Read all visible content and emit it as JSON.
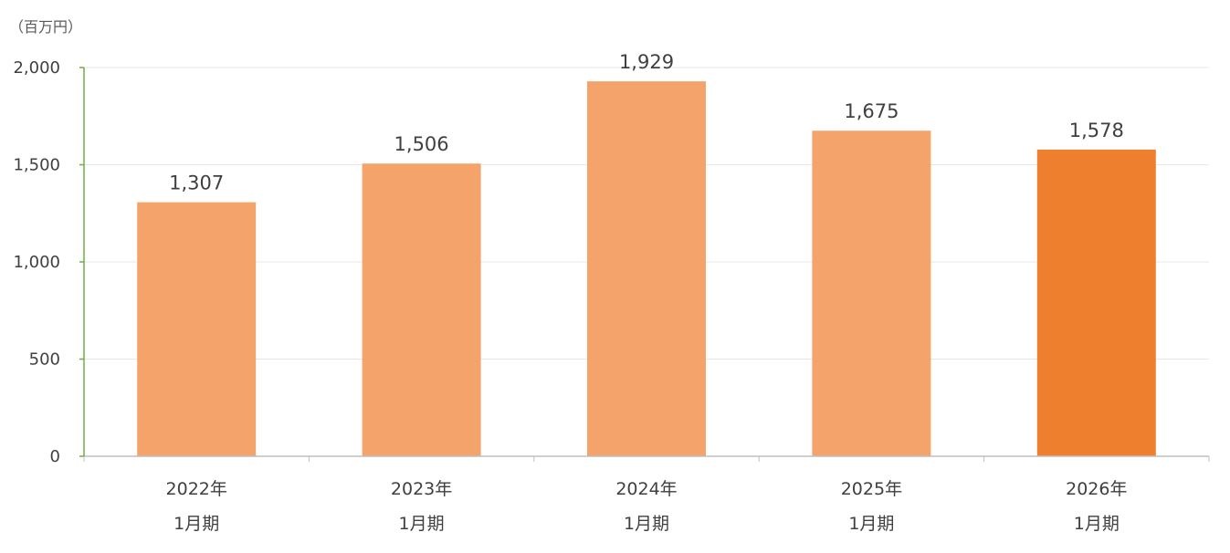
{
  "chart_data": {
    "type": "bar",
    "unit_label": "（百万円）",
    "categories": [
      [
        "2022年",
        "1月期"
      ],
      [
        "2023年",
        "1月期"
      ],
      [
        "2024年",
        "1月期"
      ],
      [
        "2025年",
        "1月期"
      ],
      [
        "2026年",
        "1月期"
      ]
    ],
    "values": [
      1307,
      1506,
      1929,
      1675,
      1578
    ],
    "data_labels": [
      "1,307",
      "1,506",
      "1,929",
      "1,675",
      "1,578"
    ],
    "ylim": [
      0,
      2000
    ],
    "yticks": [
      0,
      500,
      1000,
      1500,
      2000
    ],
    "ytick_labels": [
      "0",
      "500",
      "1,000",
      "1,500",
      "2,000"
    ],
    "grid": true,
    "legend": "none",
    "colors": {
      "bar": "#F4A46B",
      "highlight_bar": "#EE7F2F",
      "highlight_index": 4,
      "y_axis": "#70AD47",
      "grid": "#E7E7E7",
      "x_axis": "#BFBFBF"
    }
  }
}
